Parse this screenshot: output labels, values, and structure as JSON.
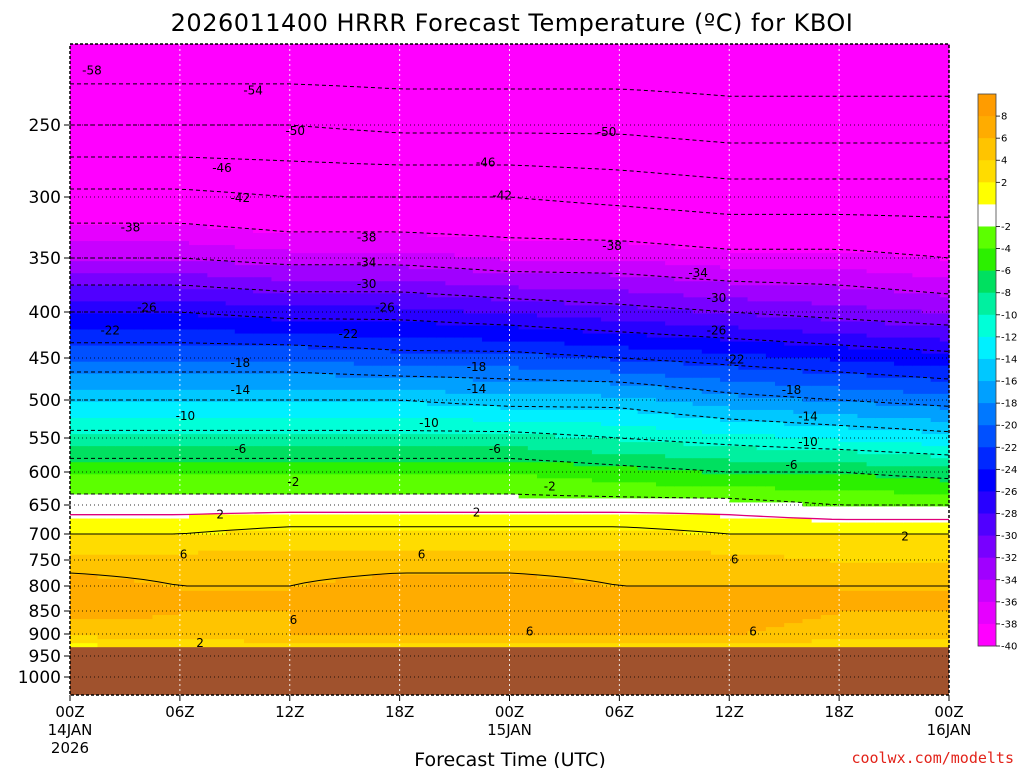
{
  "title": "2026011400 HRRR Forecast Temperature (ºC) for KBOI",
  "xlabel": "Forecast Time (UTC)",
  "credit": "coolwx.com/modelts",
  "chart_data": {
    "type": "heatmap",
    "title": "2026011400 HRRR Forecast Temperature (ºC) for KBOI",
    "xlabel": "Forecast Time (UTC)",
    "ylabel": "",
    "x_unit": "hours since 00Z 14JAN 2026",
    "xlim": [
      0,
      48
    ],
    "y_axis": "pressure (hPa), inverted",
    "ylim": [
      1050,
      200
    ],
    "y_ticks": [
      250,
      300,
      350,
      400,
      450,
      500,
      550,
      600,
      650,
      700,
      750,
      800,
      850,
      900,
      950,
      1000
    ],
    "x_ticks": [
      {
        "hour": 0,
        "lines": [
          "00Z",
          "14JAN",
          "2026"
        ]
      },
      {
        "hour": 6,
        "lines": [
          "06Z"
        ]
      },
      {
        "hour": 12,
        "lines": [
          "12Z"
        ]
      },
      {
        "hour": 18,
        "lines": [
          "18Z"
        ]
      },
      {
        "hour": 24,
        "lines": [
          "00Z",
          "15JAN"
        ]
      },
      {
        "hour": 30,
        "lines": [
          "06Z"
        ]
      },
      {
        "hour": 36,
        "lines": [
          "12Z"
        ]
      },
      {
        "hour": 42,
        "lines": [
          "18Z"
        ]
      },
      {
        "hour": 48,
        "lines": [
          "00Z",
          "16JAN"
        ]
      }
    ],
    "ground_level_hPa": 930,
    "colorbar": {
      "labels": [
        8,
        6,
        4,
        2,
        -2,
        -4,
        -6,
        -8,
        -10,
        -12,
        -14,
        -16,
        -18,
        -20,
        -22,
        -24,
        -26,
        -28,
        -30,
        -32,
        -34,
        -36,
        -38,
        -40
      ],
      "bands": [
        {
          "lo": 8,
          "hi": 10,
          "color": "#ff9c00"
        },
        {
          "lo": 6,
          "hi": 8,
          "color": "#ffac00"
        },
        {
          "lo": 4,
          "hi": 6,
          "color": "#ffc400"
        },
        {
          "lo": 2,
          "hi": 4,
          "color": "#ffdc00"
        },
        {
          "lo": 0,
          "hi": 2,
          "color": "#ffff00"
        },
        {
          "lo": -2,
          "hi": 0,
          "color": "#ffffff"
        },
        {
          "lo": -4,
          "hi": -2,
          "color": "#5cff00"
        },
        {
          "lo": -6,
          "hi": -4,
          "color": "#2cf000"
        },
        {
          "lo": -8,
          "hi": -6,
          "color": "#00e060"
        },
        {
          "lo": -10,
          "hi": -8,
          "color": "#00f0a0"
        },
        {
          "lo": -12,
          "hi": -10,
          "color": "#00ffd8"
        },
        {
          "lo": -14,
          "hi": -12,
          "color": "#00f0ff"
        },
        {
          "lo": -16,
          "hi": -14,
          "color": "#00c8ff"
        },
        {
          "lo": -18,
          "hi": -16,
          "color": "#00a0ff"
        },
        {
          "lo": -20,
          "hi": -18,
          "color": "#0078ff"
        },
        {
          "lo": -22,
          "hi": -20,
          "color": "#0050ff"
        },
        {
          "lo": -24,
          "hi": -22,
          "color": "#0028ff"
        },
        {
          "lo": -26,
          "hi": -24,
          "color": "#0000ff"
        },
        {
          "lo": -28,
          "hi": -26,
          "color": "#2800ff"
        },
        {
          "lo": -30,
          "hi": -28,
          "color": "#5000ff"
        },
        {
          "lo": -32,
          "hi": -30,
          "color": "#7800ff"
        },
        {
          "lo": -34,
          "hi": -32,
          "color": "#a000ff"
        },
        {
          "lo": -36,
          "hi": -34,
          "color": "#c800ff"
        },
        {
          "lo": -38,
          "hi": -36,
          "color": "#e600ff"
        },
        {
          "lo": -40,
          "hi": -38,
          "color": "#ff00ff"
        },
        {
          "lo": -60,
          "hi": -40,
          "color": "#ff00ff"
        }
      ]
    },
    "temperature_profile": {
      "hours": [
        0,
        6,
        12,
        18,
        24,
        30,
        36,
        42,
        48
      ],
      "pressure_hPa": [
        200,
        250,
        300,
        350,
        400,
        450,
        500,
        550,
        600,
        650,
        700,
        750,
        800,
        850,
        900,
        930
      ],
      "temperature_C": [
        [
          -57,
          -57,
          -57,
          -57,
          -57,
          -57,
          -57,
          -57,
          -57
        ],
        [
          -50,
          -50,
          -50,
          -51,
          -51,
          -51,
          -52,
          -52,
          -52
        ],
        [
          -41,
          -41,
          -42,
          -42,
          -42,
          -43,
          -44,
          -44,
          -44
        ],
        [
          -34,
          -34,
          -35,
          -35,
          -36,
          -36,
          -37,
          -37,
          -38
        ],
        [
          -26,
          -26,
          -27,
          -27,
          -28,
          -29,
          -30,
          -31,
          -32
        ],
        [
          -20,
          -20,
          -20,
          -21,
          -21,
          -22,
          -23,
          -24,
          -25
        ],
        [
          -14,
          -14,
          -14,
          -14,
          -15,
          -15,
          -17,
          -18,
          -19
        ],
        [
          -9,
          -9,
          -9,
          -9,
          -9,
          -10,
          -11,
          -12,
          -13
        ],
        [
          -4,
          -4,
          -4,
          -4,
          -4,
          -5,
          -6,
          -6,
          -7
        ],
        [
          -1,
          -1,
          -1,
          -1,
          -1,
          -1,
          -1,
          -2,
          -2
        ],
        [
          2,
          2,
          3,
          3,
          3,
          3,
          2,
          2,
          2
        ],
        [
          5,
          5,
          5,
          5,
          5,
          5,
          5,
          4,
          4
        ],
        [
          7,
          6,
          6,
          7,
          7,
          6,
          6,
          6,
          6
        ],
        [
          7,
          6,
          6,
          7,
          7,
          7,
          7,
          6,
          6
        ],
        [
          4,
          5,
          6,
          6,
          6,
          6,
          6,
          5,
          5
        ],
        [
          1,
          1,
          2,
          2,
          3,
          3,
          2,
          2,
          2
        ]
      ]
    },
    "contour_labels": [
      {
        "text": "-58",
        "hour": 1.2,
        "p": 212
      },
      {
        "text": "-54",
        "hour": 10,
        "p": 226
      },
      {
        "text": "-50",
        "hour": 12.3,
        "p": 254
      },
      {
        "text": "-50",
        "hour": 29.3,
        "p": 255
      },
      {
        "text": "-46",
        "hour": 8.3,
        "p": 280
      },
      {
        "text": "-46",
        "hour": 22.7,
        "p": 276
      },
      {
        "text": "-42",
        "hour": 9.3,
        "p": 301
      },
      {
        "text": "-42",
        "hour": 23.6,
        "p": 299
      },
      {
        "text": "-38",
        "hour": 3.3,
        "p": 325
      },
      {
        "text": "-38",
        "hour": 16.2,
        "p": 333
      },
      {
        "text": "-38",
        "hour": 29.6,
        "p": 340
      },
      {
        "text": "-34",
        "hour": 16.2,
        "p": 354
      },
      {
        "text": "-34",
        "hour": 34.3,
        "p": 364
      },
      {
        "text": "-30",
        "hour": 16.2,
        "p": 374
      },
      {
        "text": "-30",
        "hour": 35.3,
        "p": 387
      },
      {
        "text": "-26",
        "hour": 4.2,
        "p": 396
      },
      {
        "text": "-26",
        "hour": 17.2,
        "p": 396
      },
      {
        "text": "-26",
        "hour": 35.3,
        "p": 420
      },
      {
        "text": "-22",
        "hour": 2.2,
        "p": 420
      },
      {
        "text": "-22",
        "hour": 15.2,
        "p": 424
      },
      {
        "text": "-22",
        "hour": 36.3,
        "p": 452
      },
      {
        "text": "-18",
        "hour": 9.3,
        "p": 456
      },
      {
        "text": "-18",
        "hour": 22.2,
        "p": 461
      },
      {
        "text": "-18",
        "hour": 39.4,
        "p": 488
      },
      {
        "text": "-14",
        "hour": 9.3,
        "p": 488
      },
      {
        "text": "-14",
        "hour": 22.2,
        "p": 487
      },
      {
        "text": "-14",
        "hour": 40.3,
        "p": 522
      },
      {
        "text": "-10",
        "hour": 6.3,
        "p": 521
      },
      {
        "text": "-10",
        "hour": 19.6,
        "p": 530
      },
      {
        "text": "-10",
        "hour": 40.3,
        "p": 556
      },
      {
        "text": "-6",
        "hour": 9.3,
        "p": 566
      },
      {
        "text": "-6",
        "hour": 23.2,
        "p": 566
      },
      {
        "text": "-6",
        "hour": 39.4,
        "p": 590
      },
      {
        "text": "-2",
        "hour": 12.2,
        "p": 615
      },
      {
        "text": "-2",
        "hour": 26.2,
        "p": 622
      },
      {
        "text": "2",
        "hour": 8.2,
        "p": 666
      },
      {
        "text": "2",
        "hour": 22.2,
        "p": 663
      },
      {
        "text": "2",
        "hour": 45.6,
        "p": 705
      },
      {
        "text": "6",
        "hour": 6.2,
        "p": 739
      },
      {
        "text": "6",
        "hour": 19.2,
        "p": 739
      },
      {
        "text": "6",
        "hour": 36.3,
        "p": 749
      },
      {
        "text": "6",
        "hour": 12.2,
        "p": 870
      },
      {
        "text": "6",
        "hour": 25.1,
        "p": 895
      },
      {
        "text": "6",
        "hour": 37.3,
        "p": 895
      },
      {
        "text": "2",
        "hour": 7.1,
        "p": 921
      }
    ]
  }
}
